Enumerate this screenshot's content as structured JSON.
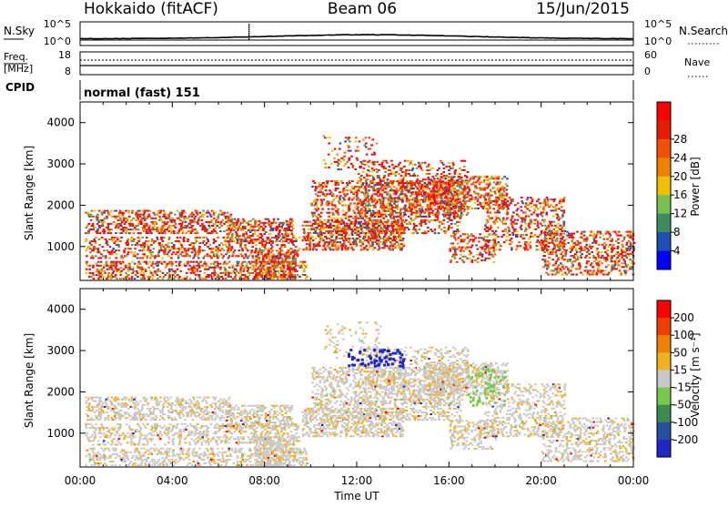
{
  "header": {
    "station": "Hokkaido (fitACF)",
    "beam": "Beam 06",
    "date": "15/Jun/2015"
  },
  "noise_panel": {
    "left_label": "N.Sky",
    "left_ticks": [
      "10^5",
      "10^0"
    ],
    "right_label": "N.Search",
    "right_ticks": [
      "10^5",
      "10^0"
    ]
  },
  "freq_panel": {
    "left_label_1": "Freq.",
    "left_label_2": "[MHz]",
    "left_ticks": [
      "18",
      "8"
    ],
    "right_label": "Nave",
    "right_ticks": [
      "60",
      "0"
    ]
  },
  "cpid": {
    "label": "CPID",
    "value": "normal (fast) 151"
  },
  "axes": {
    "ylabel": "Slant Range [km]",
    "xlabel": "Time UT",
    "y_ticks": [
      "1000",
      "2000",
      "3000",
      "4000"
    ],
    "x_ticks": [
      "00:00",
      "04:00",
      "08:00",
      "12:00",
      "16:00",
      "20:00",
      "00:00"
    ]
  },
  "power_colorbar": {
    "label": "Power [dB]",
    "ticks": [
      "4",
      "8",
      "12",
      "16",
      "20",
      "24",
      "28"
    ],
    "colors": [
      "#0000ff",
      "#1c50b4",
      "#3c8c60",
      "#78c050",
      "#f0c000",
      "#f08000",
      "#f05000",
      "#e81c00",
      "#ff0000"
    ]
  },
  "velocity_colorbar": {
    "label": "Velocity [m s⁻¹]",
    "ticks": [
      "200",
      "100",
      "50",
      "15",
      "-15",
      "-50",
      "-100",
      "-200"
    ],
    "colors": [
      "#1e28c8",
      "#2850a0",
      "#3c8c50",
      "#78c850",
      "#c8c8c8",
      "#f0b020",
      "#f08000",
      "#f04000",
      "#ff0000"
    ]
  },
  "chart_data": {
    "type": "heatmap",
    "x_range": [
      "00:00",
      "24:00"
    ],
    "y_range_km": [
      180,
      4500
    ],
    "power_db_range": [
      0,
      32
    ],
    "velocity_range_ms": [
      -250,
      250
    ],
    "ground_scatter_color": "#c8c8c8",
    "power_colors": [
      "#ff0000",
      "#ef3000",
      "#f06000",
      "#f09000",
      "#f0c000",
      "#50a050",
      "#1c50b4"
    ],
    "velocity_colors": [
      "#c8c8c8",
      "#f0b020",
      "#78c850",
      "#1e28c8"
    ]
  }
}
